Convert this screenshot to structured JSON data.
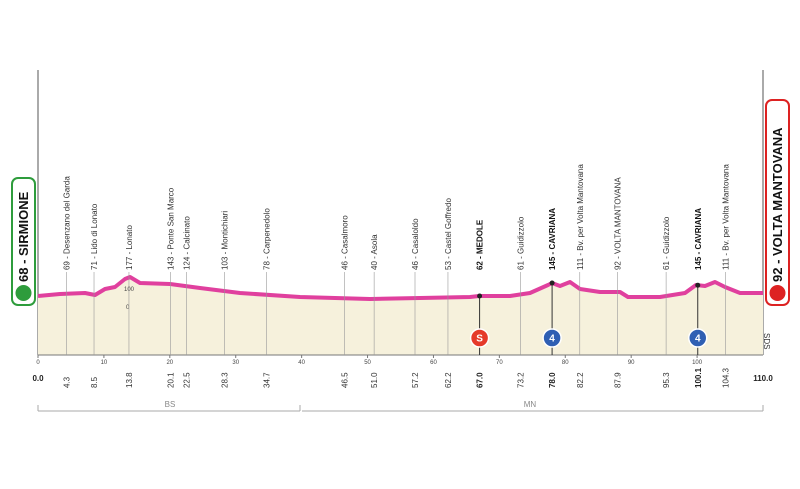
{
  "start": {
    "label": "68 - SIRMIONE"
  },
  "finish": {
    "label": "92 - VOLTA MANTOVANA"
  },
  "waypoints": [
    {
      "km": "4.3",
      "label": "69 - Desenzano del Garda"
    },
    {
      "km": "8.5",
      "label": "71 - Lido di Lonato"
    },
    {
      "km": "13.8",
      "label": "177 - Lonato"
    },
    {
      "km": "20.1",
      "label": "143 - Ponte San Marco"
    },
    {
      "km": "22.5",
      "label": "124 - Calcinato"
    },
    {
      "km": "28.3",
      "label": "103 - Montichiari"
    },
    {
      "km": "34.7",
      "label": "78 - Carpenedolo"
    },
    {
      "km": "46.5",
      "label": "46 - Casalmoro"
    },
    {
      "km": "51.0",
      "label": "40 - Asola"
    },
    {
      "km": "57.2",
      "label": "46 - Casaloldo"
    },
    {
      "km": "62.2",
      "label": "53 - Castel Goffredo"
    },
    {
      "km": "67.0",
      "label": "62 - MEDOLE",
      "badge": "S"
    },
    {
      "km": "73.2",
      "label": "61 - Guidizzolo"
    },
    {
      "km": "78.0",
      "label": "145 - CAVRIANA",
      "badge": "4"
    },
    {
      "km": "82.2",
      "label": "111 - Bv. per Volta Mantovana"
    },
    {
      "km": "87.9",
      "label": "92 - VOLTA MANTOVANA"
    },
    {
      "km": "95.3",
      "label": "61 - Guidizzolo"
    },
    {
      "km": "100.1",
      "label": "145 - CAVRIANA",
      "badge": "4"
    },
    {
      "km": "104.3",
      "label": "111 - Bv. per Volta Mantovana"
    }
  ],
  "start_km": "0.0",
  "end_km": "110.0",
  "scale": [
    "0",
    "10",
    "20",
    "30",
    "40",
    "50",
    "60",
    "70",
    "80",
    "90",
    "100"
  ],
  "altitude": [
    "100",
    "0"
  ],
  "sds": "SDS",
  "provinces": [
    "BS",
    "MN"
  ]
}
